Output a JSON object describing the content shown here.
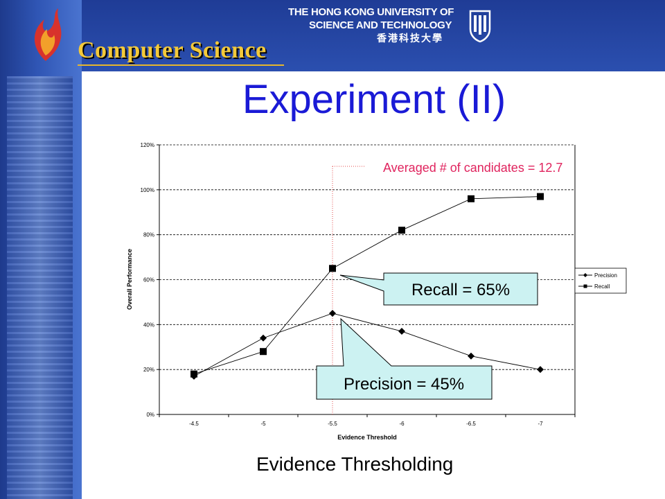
{
  "header": {
    "logo_text": "Computer Science",
    "university_line1": "THE HONG KONG UNIVERSITY OF",
    "university_line2": "SCIENCE AND TECHNOLOGY",
    "university_line3": "香港科技大學"
  },
  "slide": {
    "title": "Experiment (II)",
    "caption": "Evidence Thresholding"
  },
  "chart_data": {
    "type": "line",
    "xlabel": "Evidence Threshold",
    "ylabel": "Overall Performance",
    "x": [
      "-4.5",
      "-5",
      "-5.5",
      "-6",
      "-6.5",
      "-7"
    ],
    "ylim": [
      0,
      120
    ],
    "yticks": [
      "0%",
      "20%",
      "40%",
      "60%",
      "80%",
      "100%",
      "120%"
    ],
    "grid": true,
    "legend_position": "right",
    "series": [
      {
        "name": "Precision",
        "marker": "diamond",
        "values": [
          17,
          34,
          45,
          37,
          26,
          20
        ]
      },
      {
        "name": "Recall",
        "marker": "square",
        "values": [
          18,
          28,
          65,
          82,
          96,
          97
        ]
      }
    ],
    "annotations": {
      "candidates": "Averaged # of candidates = 12.7",
      "recall": "Recall = 65%",
      "precision": "Precision = 45%"
    },
    "colors": {
      "callout_fill": "#ccf2f2",
      "annotation_text": "#e0245e",
      "marker_line": "#e34b4b"
    }
  }
}
